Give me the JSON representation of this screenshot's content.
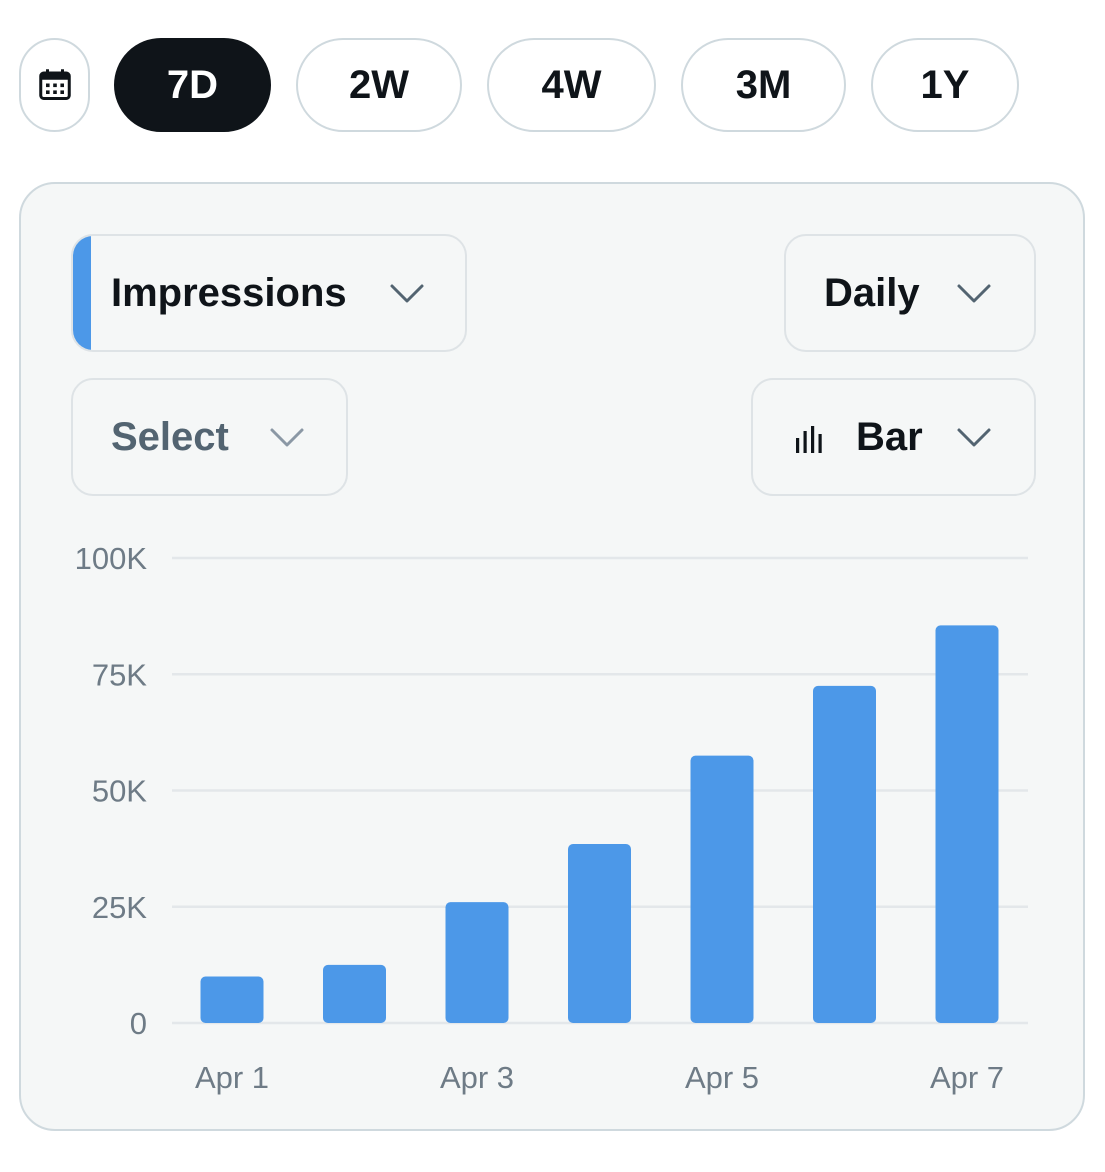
{
  "range_tabs": [
    {
      "label": "7D",
      "active": true
    },
    {
      "label": "2W",
      "active": false
    },
    {
      "label": "4W",
      "active": false
    },
    {
      "label": "3M",
      "active": false
    },
    {
      "label": "1Y",
      "active": false
    }
  ],
  "calendar_icon": "calendar-icon",
  "controls": {
    "metric": "Impressions",
    "interval": "Daily",
    "compare": "Select",
    "chart_type": "Bar",
    "chart_type_icon": "bar-chart-icon",
    "chevron_icon": "chevron-down-icon"
  },
  "colors": {
    "accent": "#4c98e8",
    "bar": "#4c98e8",
    "active_pill": "#0f1419",
    "card_bg": "#f5f7f7",
    "grid": "#e3e7ea",
    "tick": "#6e7b86"
  },
  "chart_data": {
    "type": "bar",
    "title": "",
    "xlabel": "",
    "ylabel": "",
    "categories": [
      "Apr 1",
      "Apr 2",
      "Apr 3",
      "Apr 4",
      "Apr 5",
      "Apr 6",
      "Apr 7"
    ],
    "x_tick_labels": [
      "Apr 1",
      "Apr 3",
      "Apr 5",
      "Apr 7"
    ],
    "series": [
      {
        "name": "Impressions",
        "values": [
          10000,
          12500,
          26000,
          38500,
          57500,
          72500,
          85500
        ]
      }
    ],
    "ylim": [
      0,
      100000
    ],
    "y_ticks": [
      0,
      25000,
      50000,
      75000,
      100000
    ],
    "y_tick_labels": [
      "0",
      "25K",
      "50K",
      "75K",
      "100K"
    ],
    "grid": true,
    "legend": "none"
  }
}
